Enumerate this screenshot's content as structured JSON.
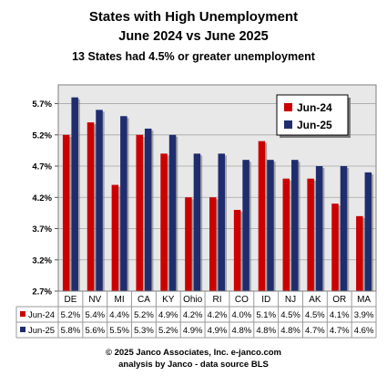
{
  "chart_data": {
    "type": "bar",
    "title": "States with High Unemployment",
    "subtitle": "June 2024 vs June 2025",
    "subtitle2": "13  States had 4.5% or greater unemployment",
    "categories": [
      "DE",
      "NV",
      "MI",
      "CA",
      "KY",
      "Ohio",
      "RI",
      "CO",
      "ID",
      "NJ",
      "AK",
      "OR",
      "MA"
    ],
    "series": [
      {
        "name": "Jun-24",
        "color": "#cc0000",
        "values": [
          5.2,
          5.4,
          4.4,
          5.2,
          4.9,
          4.2,
          4.2,
          4.0,
          5.1,
          4.5,
          4.5,
          4.1,
          3.9
        ],
        "labels": [
          "5.2%",
          "5.4%",
          "4.4%",
          "5.2%",
          "4.9%",
          "4.2%",
          "4.2%",
          "4.0%",
          "5.1%",
          "4.5%",
          "4.5%",
          "4.1%",
          "3.9%"
        ]
      },
      {
        "name": "Jun-25",
        "color": "#1f2d6e",
        "values": [
          5.8,
          5.6,
          5.5,
          5.3,
          5.2,
          4.9,
          4.9,
          4.8,
          4.8,
          4.8,
          4.7,
          4.7,
          4.6
        ],
        "labels": [
          "5.8%",
          "5.6%",
          "5.5%",
          "5.3%",
          "5.2%",
          "4.9%",
          "4.9%",
          "4.8%",
          "4.8%",
          "4.8%",
          "4.7%",
          "4.7%",
          "4.6%"
        ]
      }
    ],
    "yticks": [
      "2.7%",
      "3.2%",
      "3.7%",
      "4.2%",
      "4.7%",
      "5.2%",
      "5.7%"
    ],
    "ylim": [
      2.7,
      6.0
    ],
    "grid": true,
    "legend_position": "top-right",
    "footer1": "© 2025 Janco Associates, Inc. e-janco.com",
    "footer2": "analysis by Janco - data source BLS"
  }
}
